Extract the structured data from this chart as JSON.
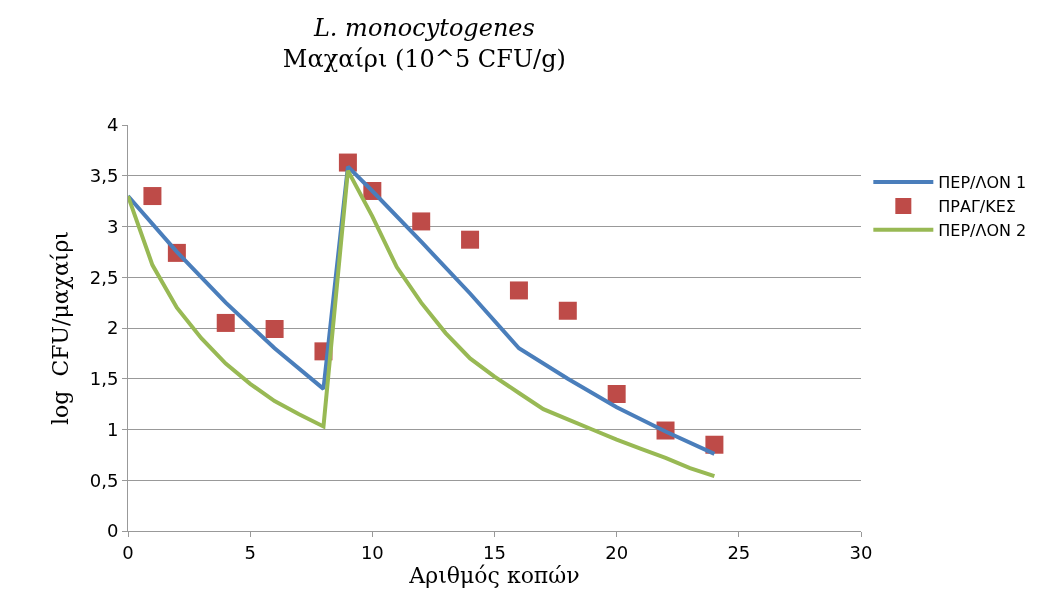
{
  "chart_data": {
    "type": "line",
    "title": "L. monocytogenes",
    "subtitle": "Μαχαίρι (10^5 CFU/g)",
    "xlabel": "Αριθμός κοπών",
    "ylabel": "log  CFU/μαχαίρι",
    "xlim": [
      0,
      30
    ],
    "xticks": [
      0,
      5,
      10,
      15,
      20,
      25,
      30
    ],
    "ylim": [
      0,
      4
    ],
    "yticks": [
      0,
      {
        "value": 0.5,
        "label": "0,5"
      },
      1,
      {
        "value": 1.5,
        "label": "1,5"
      },
      2,
      {
        "value": 2.5,
        "label": "2,5"
      },
      3,
      {
        "value": 3.5,
        "label": "3,5"
      },
      4
    ],
    "grid": "y",
    "legend": "right",
    "series": [
      {
        "name": "ΠΕΡ/ΛΟΝ 1",
        "color": "#4a7ebb",
        "marker": "none",
        "x": [
          0,
          2,
          4,
          6,
          8,
          9,
          10,
          12,
          14,
          16,
          18,
          20,
          22,
          24
        ],
        "values": [
          3.3,
          2.75,
          2.25,
          1.8,
          1.4,
          3.59,
          3.35,
          2.85,
          2.34,
          1.8,
          1.5,
          1.22,
          0.98,
          0.76
        ]
      },
      {
        "name": "ΠΡΑΓ/ΚΕΣ",
        "type": "scatter",
        "color": "#be4b48",
        "marker": "square",
        "x": [
          1,
          2,
          4,
          6,
          8,
          9,
          10,
          12,
          14,
          16,
          18,
          20,
          22,
          24
        ],
        "values": [
          3.3,
          2.74,
          2.05,
          1.99,
          1.77,
          3.63,
          3.35,
          3.05,
          2.87,
          2.37,
          2.17,
          1.35,
          0.99,
          0.85
        ]
      },
      {
        "name": "ΠΕΡ/ΛΟΝ 2",
        "color": "#98b954",
        "marker": "none",
        "x": [
          0,
          1,
          2,
          3,
          4,
          5,
          6,
          7,
          8,
          9,
          10,
          11,
          12,
          13,
          14,
          15,
          16,
          17,
          18,
          19,
          20,
          21,
          22,
          23,
          24
        ],
        "values": [
          3.3,
          2.62,
          2.2,
          1.9,
          1.65,
          1.45,
          1.28,
          1.15,
          1.03,
          3.55,
          3.1,
          2.6,
          2.25,
          1.95,
          1.7,
          1.52,
          1.36,
          1.2,
          1.1,
          1.0,
          0.9,
          0.81,
          0.72,
          0.62,
          0.54
        ]
      }
    ]
  }
}
